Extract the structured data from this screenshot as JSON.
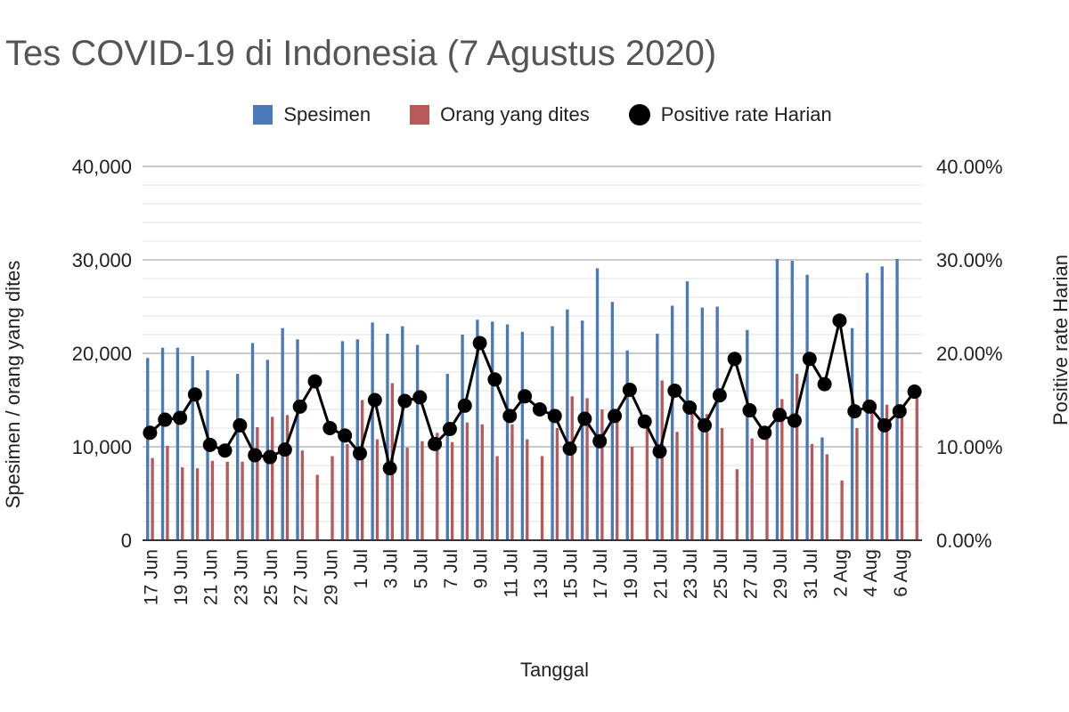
{
  "title": "Tes COVID-19 di Indonesia (7 Agustus 2020)",
  "chart_data": {
    "type": "bar",
    "title": "Tes COVID-19 di Indonesia (7 Agustus 2020)",
    "xlabel": "Tanggal",
    "ylabel": "Spesimen / orang yang dites",
    "y2label": "Positive rate Harian",
    "ylim": [
      0,
      40000
    ],
    "y2lim": [
      0,
      40
    ],
    "yticks": [
      "0",
      "10,000",
      "20,000",
      "30,000",
      "40,000"
    ],
    "y2ticks": [
      "0.00%",
      "10.00%",
      "20.00%",
      "30.00%",
      "40.00%"
    ],
    "legend_position": "top",
    "grid": true,
    "x": [
      "17 Jun",
      "18 Jun",
      "19 Jun",
      "20 Jun",
      "21 Jun",
      "22 Jun",
      "23 Jun",
      "24 Jun",
      "25 Jun",
      "26 Jun",
      "27 Jun",
      "28 Jun",
      "29 Jun",
      "30 Jun",
      "1 Jul",
      "2 Jul",
      "3 Jul",
      "4 Jul",
      "5 Jul",
      "6 Jul",
      "7 Jul",
      "8 Jul",
      "9 Jul",
      "10 Jul",
      "11 Jul",
      "12 Jul",
      "13 Jul",
      "14 Jul",
      "15 Jul",
      "16 Jul",
      "17 Jul",
      "18 Jul",
      "19 Jul",
      "20 Jul",
      "21 Jul",
      "22 Jul",
      "23 Jul",
      "24 Jul",
      "25 Jul",
      "26 Jul",
      "27 Jul",
      "28 Jul",
      "29 Jul",
      "30 Jul",
      "31 Jul",
      "1 Aug",
      "2 Aug",
      "3 Aug",
      "4 Aug",
      "5 Aug",
      "6 Aug",
      "7 Aug"
    ],
    "xtick_labels": [
      "17 Jun",
      "19 Jun",
      "21 Jun",
      "23 Jun",
      "25 Jun",
      "27 Jun",
      "29 Jun",
      "1 Jul",
      "3 Jul",
      "5 Jul",
      "7 Jul",
      "9 Jul",
      "11 Jul",
      "13 Jul",
      "15 Jul",
      "17 Jul",
      "19 Jul",
      "21 Jul",
      "23 Jul",
      "25 Jul",
      "27 Jul",
      "29 Jul",
      "31 Jul",
      "2 Aug",
      "4 Aug",
      "6 Aug"
    ],
    "series": [
      {
        "name": "Spesimen",
        "axis": "left",
        "color": "#4a7ab8",
        "values": [
          19500,
          20600,
          20600,
          19700,
          18200,
          null,
          17800,
          21100,
          19300,
          22700,
          21500,
          null,
          null,
          21300,
          21500,
          23300,
          22100,
          22900,
          20900,
          null,
          17800,
          22000,
          23600,
          23400,
          23100,
          22300,
          null,
          22900,
          24700,
          23500,
          29100,
          25500,
          20300,
          null,
          22100,
          25100,
          27700,
          24900,
          25000,
          null,
          22500,
          null,
          30100,
          29900,
          28400,
          11000,
          null,
          22700,
          28600,
          29300,
          30100,
          null
        ]
      },
      {
        "name": "Orang yang dites",
        "axis": "left",
        "color": "#b85a5a",
        "values": [
          8800,
          10100,
          7800,
          7700,
          8500,
          8400,
          8400,
          12100,
          13200,
          13400,
          9600,
          7000,
          9000,
          10300,
          15000,
          10800,
          16800,
          9900,
          10600,
          11500,
          10500,
          12600,
          12400,
          9000,
          12400,
          10800,
          9000,
          12000,
          15400,
          15200,
          14000,
          14000,
          10000,
          12000,
          17100,
          11600,
          13700,
          13500,
          12000,
          7600,
          10900,
          11500,
          15100,
          17800,
          10300,
          9200,
          6400,
          12000,
          14200,
          14500,
          13500,
          15200
        ]
      },
      {
        "name": "Positive rate Harian",
        "axis": "right",
        "color": "#000000",
        "values": [
          11.5,
          12.9,
          13.1,
          15.6,
          10.2,
          9.6,
          12.3,
          9.1,
          8.9,
          9.7,
          14.3,
          17.0,
          12.0,
          11.2,
          9.3,
          15.0,
          7.7,
          14.9,
          15.3,
          10.3,
          11.9,
          14.4,
          21.1,
          17.2,
          13.3,
          15.4,
          14.0,
          13.3,
          9.8,
          13.0,
          10.6,
          13.3,
          16.1,
          12.7,
          9.5,
          16.0,
          14.2,
          12.3,
          15.5,
          19.4,
          13.9,
          11.5,
          13.4,
          12.8,
          19.4,
          16.7,
          23.5,
          13.8,
          14.3,
          12.3,
          13.8,
          15.9
        ]
      }
    ]
  }
}
